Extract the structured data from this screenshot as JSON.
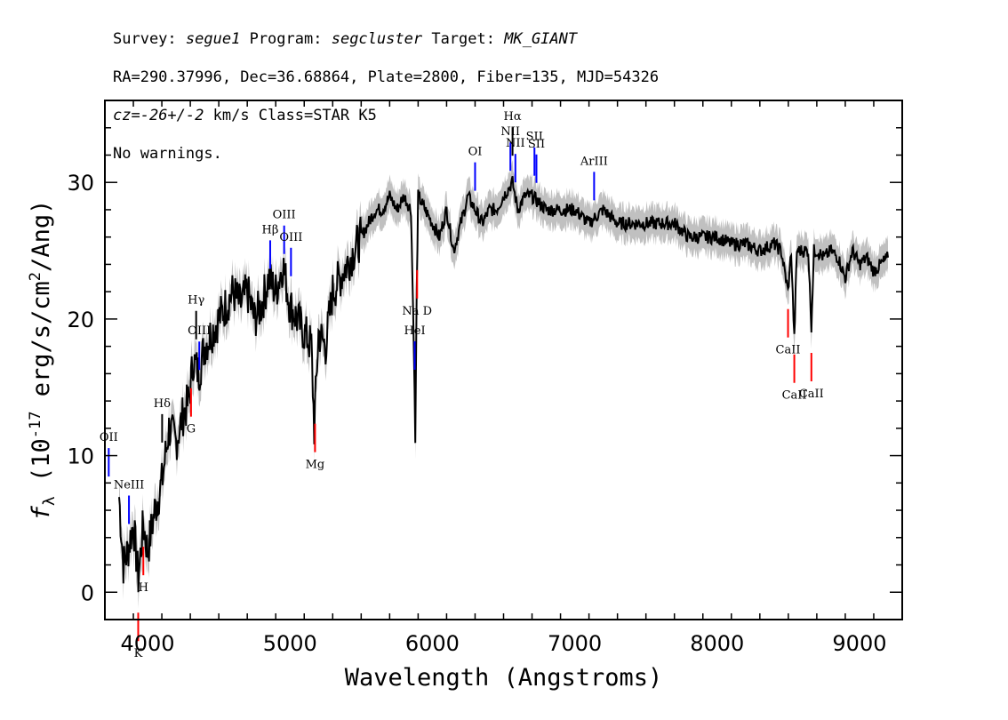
{
  "header": {
    "line1": {
      "survey_label": "Survey:",
      "survey": "segue1",
      "program_label": "Program:",
      "program": "segcluster",
      "target_label": "Target:",
      "target": "MK_GIANT"
    },
    "line2": "RA=290.37996, Dec=36.68864, Plate=2800, Fiber=135, MJD=54326",
    "line3": {
      "cz_label": "cz=",
      "cz": "-26+/-2",
      "rest": " km/s Class=STAR K5"
    },
    "line4": "No warnings."
  },
  "chart_data": {
    "type": "line",
    "xlabel": "Wavelength (Angstroms)",
    "ylabel": "f_λ (10^-17 erg/s/cm^2/Ang)",
    "xlim": [
      3700,
      9300
    ],
    "ylim": [
      -2,
      36
    ],
    "grid": false,
    "x_ticks": [
      4000,
      5000,
      6000,
      7000,
      8000,
      9000
    ],
    "y_ticks": [
      0,
      10,
      20,
      30
    ],
    "colors": {
      "flux": "#000000",
      "error_band": "#c0c0c0",
      "emission": "#0000ff",
      "absorption": "#ff0000",
      "balmer": "#000000"
    },
    "series": [
      {
        "x": [
          3800,
          3830,
          3860,
          3900,
          3935,
          3970,
          4000,
          4050,
          4100,
          4150,
          4200,
          4250,
          4290,
          4320,
          4360,
          4400,
          4450,
          4500,
          4550,
          4600,
          4650,
          4700,
          4750,
          4800,
          4850,
          4900,
          4950,
          5000,
          5050,
          5100,
          5150,
          5170,
          5200,
          5250,
          5300,
          5350,
          5400,
          5450,
          5500,
          5550,
          5600,
          5650,
          5700,
          5750,
          5800,
          5850,
          5870,
          5880,
          5890,
          5900,
          5950,
          6000,
          6050,
          6100,
          6150,
          6200,
          6250,
          6300,
          6350,
          6400,
          6450,
          6500,
          6563,
          6600,
          6650,
          6700,
          6800,
          6900,
          7000,
          7100,
          7200,
          7300,
          7400,
          7500,
          7600,
          7700,
          7800,
          7900,
          8000,
          8100,
          8200,
          8300,
          8400,
          8450,
          8498,
          8520,
          8542,
          8560,
          8600,
          8640,
          8662,
          8680,
          8700,
          8750,
          8800,
          8850,
          8900,
          8950,
          9000,
          9050,
          9100,
          9150,
          9200
        ],
        "values": [
          7,
          2,
          3,
          5,
          1,
          5,
          3,
          6,
          8,
          12,
          11,
          13,
          14,
          17,
          16,
          18,
          19,
          20,
          21,
          22,
          21,
          22,
          20,
          21,
          23,
          22,
          24,
          21,
          20,
          19,
          18,
          12,
          19,
          18,
          22,
          23,
          24,
          25,
          26,
          27,
          28,
          28,
          29,
          28,
          29,
          28,
          18,
          11,
          22,
          29,
          28,
          27,
          26,
          28,
          25,
          27,
          29,
          28,
          27,
          28,
          28,
          29,
          30,
          28,
          29,
          29,
          28,
          28,
          28,
          27,
          28,
          27,
          27,
          27,
          27,
          27,
          26,
          26,
          26,
          25.5,
          25.5,
          25,
          25.5,
          25,
          22,
          25,
          18.5,
          25,
          25,
          25,
          19.5,
          25,
          25,
          24.5,
          25,
          24.5,
          23,
          25,
          24,
          24.5,
          23.5,
          24,
          24.5
        ]
      }
    ],
    "line_markers": [
      {
        "label": "OII",
        "x": 3727,
        "kind": "emission"
      },
      {
        "label": "NeIII",
        "x": 3869,
        "kind": "emission"
      },
      {
        "label": "H",
        "x": 3970,
        "kind": "absorption"
      },
      {
        "label": "K",
        "x": 3934,
        "kind": "absorption"
      },
      {
        "label": "Hδ",
        "x": 4102,
        "kind": "balmer"
      },
      {
        "label": "Hγ",
        "x": 4341,
        "kind": "balmer"
      },
      {
        "label": "OIII",
        "x": 4363,
        "kind": "emission"
      },
      {
        "label": "G",
        "x": 4305,
        "kind": "absorption"
      },
      {
        "label": "Hβ",
        "x": 4861,
        "kind": "emission"
      },
      {
        "label": "OIII",
        "x": 4959,
        "kind": "emission"
      },
      {
        "label": "OIII",
        "x": 5007,
        "kind": "emission"
      },
      {
        "label": "Mg",
        "x": 5176,
        "kind": "absorption"
      },
      {
        "label": "HeI",
        "x": 5876,
        "kind": "emission"
      },
      {
        "label": "Na D",
        "x": 5893,
        "kind": "absorption"
      },
      {
        "label": "OI",
        "x": 6300,
        "kind": "emission"
      },
      {
        "label": "NII",
        "x": 6548,
        "kind": "emission"
      },
      {
        "label": "Hα",
        "x": 6563,
        "kind": "balmer"
      },
      {
        "label": "NII",
        "x": 6583,
        "kind": "emission"
      },
      {
        "label": "SII",
        "x": 6717,
        "kind": "emission"
      },
      {
        "label": "SII",
        "x": 6731,
        "kind": "emission"
      },
      {
        "label": "ArIII",
        "x": 7136,
        "kind": "emission"
      },
      {
        "label": "CaII",
        "x": 8498,
        "kind": "absorption"
      },
      {
        "label": "CaII",
        "x": 8542,
        "kind": "absorption"
      },
      {
        "label": "CaII",
        "x": 8662,
        "kind": "absorption"
      }
    ]
  }
}
